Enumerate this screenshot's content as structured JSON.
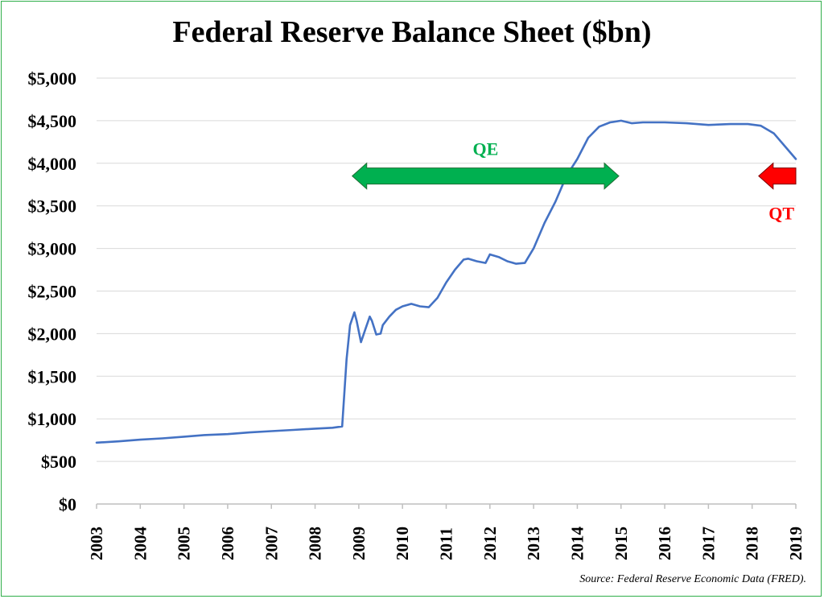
{
  "chart_data": {
    "type": "line",
    "title": "Federal Reserve Balance Sheet ($bn)",
    "xlabel": "",
    "ylabel": "",
    "source": "Source: Federal Reserve Economic Data (FRED).",
    "xlim": [
      2003,
      2019
    ],
    "ylim": [
      0,
      5000
    ],
    "x_ticks": [
      "2003",
      "2004",
      "2005",
      "2006",
      "2007",
      "2008",
      "2009",
      "2010",
      "2011",
      "2012",
      "2013",
      "2014",
      "2015",
      "2016",
      "2017",
      "2018",
      "2019"
    ],
    "y_ticks": [
      "$0",
      "$500",
      "$1,000",
      "$1,500",
      "$2,000",
      "$2,500",
      "$3,000",
      "$3,500",
      "$4,000",
      "$4,500",
      "$5,000"
    ],
    "y_tick_values": [
      0,
      500,
      1000,
      1500,
      2000,
      2500,
      3000,
      3500,
      4000,
      4500,
      5000
    ],
    "grid": "horizontal",
    "line_color": "#4472c4",
    "series": [
      {
        "x": [
          2003.0,
          2003.5,
          2004.0,
          2004.5,
          2005.0,
          2005.5,
          2006.0,
          2006.5,
          2007.0,
          2007.5,
          2008.0,
          2008.4,
          2008.62,
          2008.72,
          2008.8,
          2008.9,
          2008.95,
          2009.05,
          2009.15,
          2009.25,
          2009.3,
          2009.4,
          2009.5,
          2009.55,
          2009.7,
          2009.85,
          2010.0,
          2010.2,
          2010.4,
          2010.6,
          2010.8,
          2011.0,
          2011.2,
          2011.4,
          2011.5,
          2011.7,
          2011.9,
          2012.0,
          2012.2,
          2012.4,
          2012.6,
          2012.8,
          2013.0,
          2013.25,
          2013.5,
          2013.75,
          2014.0,
          2014.25,
          2014.5,
          2014.75,
          2015.0,
          2015.25,
          2015.5,
          2016.0,
          2016.5,
          2017.0,
          2017.5,
          2017.9,
          2018.2,
          2018.5,
          2018.75,
          2019.0
        ],
        "y": [
          720,
          735,
          755,
          770,
          790,
          810,
          820,
          840,
          855,
          870,
          885,
          895,
          910,
          1700,
          2100,
          2250,
          2150,
          1900,
          2050,
          2200,
          2150,
          1990,
          2000,
          2100,
          2200,
          2280,
          2320,
          2350,
          2320,
          2310,
          2420,
          2600,
          2750,
          2870,
          2880,
          2850,
          2830,
          2930,
          2900,
          2850,
          2820,
          2830,
          3000,
          3300,
          3550,
          3850,
          4050,
          4300,
          4430,
          4480,
          4500,
          4470,
          4480,
          4480,
          4470,
          4450,
          4460,
          4460,
          4440,
          4350,
          4200,
          4050
        ]
      }
    ],
    "annotations": [
      {
        "label": "QE",
        "color": "#00b050",
        "type": "double-arrow",
        "x_start": 2008.85,
        "x_end": 2014.95,
        "y": 3850
      },
      {
        "label": "QT",
        "color": "#ff0000",
        "type": "arrow-left",
        "x_start": 2018.15,
        "x_end": 2019.0,
        "y": 3850
      }
    ]
  }
}
